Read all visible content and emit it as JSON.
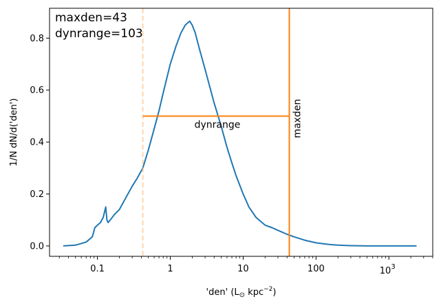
{
  "chart_data": {
    "type": "line",
    "x_scale": "log",
    "xlabel_prefix": "'den' (L",
    "xlabel_sun": "⊙",
    "xlabel_mid": " kpc",
    "xlabel_exp": "−2",
    "xlabel_suffix": ")",
    "ylabel": "1/N dN/d('den')",
    "xlim": [
      0.022,
      4000
    ],
    "ylim": [
      -0.04,
      0.915
    ],
    "x_ticks": [
      {
        "value": 0.1,
        "label": "0.1"
      },
      {
        "value": 1,
        "label": "1"
      },
      {
        "value": 10,
        "label": "10"
      },
      {
        "value": 100,
        "label": "100"
      }
    ],
    "x_tick_pow": {
      "value": 1000,
      "base": "10",
      "exp": "3"
    },
    "y_ticks": [
      {
        "value": 0.0,
        "label": "0.0"
      },
      {
        "value": 0.2,
        "label": "0.2"
      },
      {
        "value": 0.4,
        "label": "0.4"
      },
      {
        "value": 0.6,
        "label": "0.6"
      },
      {
        "value": 0.8,
        "label": "0.8"
      }
    ],
    "info_lines": [
      "maxden=43",
      "dynrange=103"
    ],
    "series": [
      {
        "color": "#1f77b4",
        "x": [
          0.034,
          0.05,
          0.07,
          0.085,
          0.09,
          0.092,
          0.1,
          0.11,
          0.12,
          0.13,
          0.135,
          0.14,
          0.15,
          0.17,
          0.2,
          0.25,
          0.3,
          0.35,
          0.42,
          0.5,
          0.6,
          0.7,
          0.8,
          1.0,
          1.2,
          1.4,
          1.6,
          1.75,
          1.85,
          2.0,
          2.2,
          2.5,
          3.0,
          3.5,
          4.0,
          5.0,
          6.0,
          7.0,
          8.0,
          10,
          12,
          15,
          20,
          25,
          30,
          40,
          50,
          70,
          100,
          150,
          200,
          300,
          500,
          1000,
          2400
        ],
        "y": [
          0.0,
          0.003,
          0.015,
          0.035,
          0.06,
          0.07,
          0.08,
          0.09,
          0.11,
          0.15,
          0.1,
          0.09,
          0.1,
          0.12,
          0.14,
          0.19,
          0.23,
          0.26,
          0.3,
          0.37,
          0.45,
          0.52,
          0.59,
          0.7,
          0.77,
          0.82,
          0.85,
          0.86,
          0.865,
          0.85,
          0.82,
          0.76,
          0.68,
          0.61,
          0.55,
          0.46,
          0.38,
          0.32,
          0.27,
          0.2,
          0.15,
          0.11,
          0.08,
          0.07,
          0.06,
          0.045,
          0.035,
          0.022,
          0.012,
          0.006,
          0.003,
          0.001,
          0.0,
          0.0,
          0.0
        ]
      }
    ],
    "vlines": [
      {
        "x": 0.42,
        "color": "#ffbb78",
        "style": "dashed",
        "opacity": 0.6
      },
      {
        "x": 43,
        "color": "#ff7f0e",
        "style": "solid",
        "label": "maxden"
      }
    ],
    "hline": {
      "y": 0.5,
      "x_start": 0.42,
      "x_end": 43,
      "color": "#ff7f0e",
      "label": "dynrange"
    }
  }
}
